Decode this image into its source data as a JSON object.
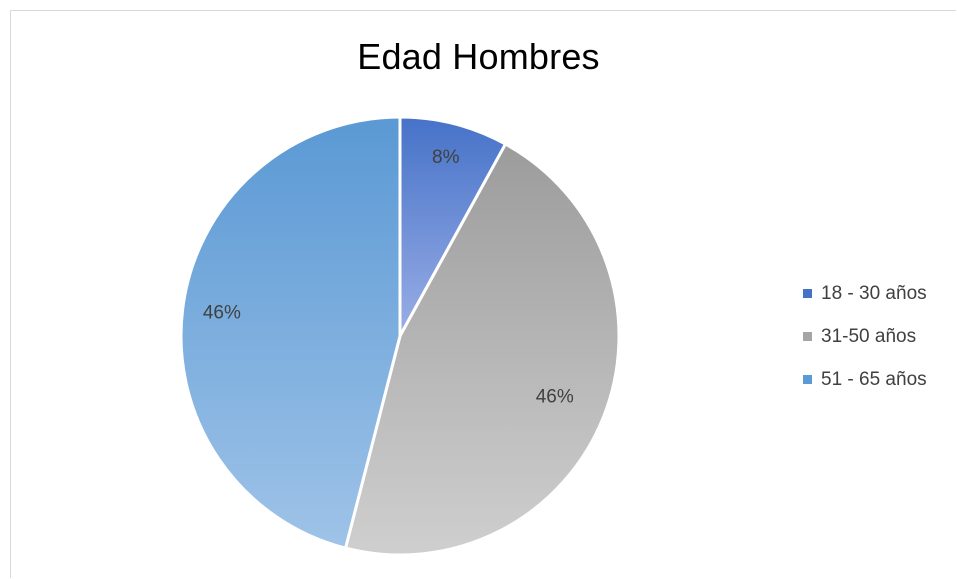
{
  "chart_data": {
    "type": "pie",
    "title": "Edad Hombres",
    "categories": [
      "18 - 30 años",
      "31-50 años",
      "51 - 65 años"
    ],
    "values": [
      8,
      46,
      46
    ],
    "data_labels": [
      "8%",
      "46%",
      "46%"
    ],
    "colors": [
      "#4f7fd0",
      "#a5a5a5",
      "#5b9bd5"
    ],
    "legend_position": "right"
  }
}
